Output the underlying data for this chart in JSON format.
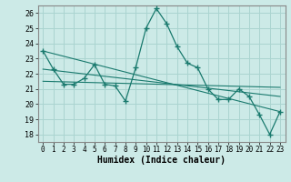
{
  "xlabel": "Humidex (Indice chaleur)",
  "background_color": "#cceae7",
  "grid_color": "#aad4d0",
  "line_color": "#1a7a6e",
  "xlim": [
    -0.5,
    23.5
  ],
  "ylim": [
    17.5,
    26.5
  ],
  "yticks": [
    18,
    19,
    20,
    21,
    22,
    23,
    24,
    25,
    26
  ],
  "xticks": [
    0,
    1,
    2,
    3,
    4,
    5,
    6,
    7,
    8,
    9,
    10,
    11,
    12,
    13,
    14,
    15,
    16,
    17,
    18,
    19,
    20,
    21,
    22,
    23
  ],
  "series1_x": [
    0,
    1,
    2,
    3,
    4,
    5,
    6,
    7,
    8,
    9,
    10,
    11,
    12,
    13,
    14,
    15,
    16,
    17,
    18,
    19,
    20,
    21,
    22,
    23
  ],
  "series1_y": [
    23.5,
    22.3,
    21.3,
    21.3,
    21.7,
    22.6,
    21.3,
    21.2,
    20.2,
    22.4,
    25.0,
    26.3,
    25.3,
    23.8,
    22.7,
    22.4,
    21.0,
    20.3,
    20.3,
    21.0,
    20.5,
    19.3,
    18.0,
    19.5
  ],
  "series2_x": [
    0,
    23
  ],
  "series2_y": [
    23.5,
    19.5
  ],
  "series3_x": [
    0,
    23
  ],
  "series3_y": [
    21.5,
    21.1
  ],
  "series4_x": [
    0,
    23
  ],
  "series4_y": [
    22.3,
    20.5
  ]
}
